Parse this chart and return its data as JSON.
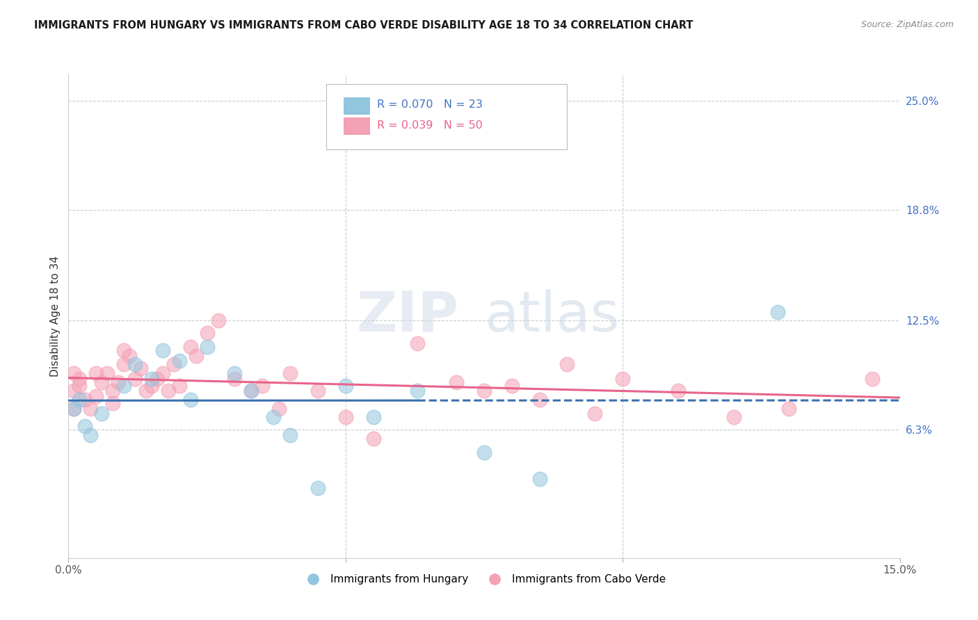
{
  "title": "IMMIGRANTS FROM HUNGARY VS IMMIGRANTS FROM CABO VERDE DISABILITY AGE 18 TO 34 CORRELATION CHART",
  "source": "Source: ZipAtlas.com",
  "ylabel_label": "Disability Age 18 to 34",
  "xlim": [
    0.0,
    0.15
  ],
  "ylim": [
    -0.01,
    0.265
  ],
  "yticks_right": [
    0.063,
    0.125,
    0.188,
    0.25
  ],
  "ytick_labels_right": [
    "6.3%",
    "12.5%",
    "18.8%",
    "25.0%"
  ],
  "hungary_color": "#92C5DE",
  "cabo_verde_color": "#F4A0B5",
  "hungary_R": 0.07,
  "hungary_N": 23,
  "cabo_verde_R": 0.039,
  "cabo_verde_N": 50,
  "hungary_line_color": "#3A6FB0",
  "cabo_verde_line_color": "#E8638A",
  "grid_color": "#CCCCCC",
  "background_color": "#FFFFFF",
  "hungary_x": [
    0.001,
    0.002,
    0.003,
    0.004,
    0.006,
    0.01,
    0.012,
    0.015,
    0.017,
    0.02,
    0.022,
    0.025,
    0.03,
    0.033,
    0.037,
    0.04,
    0.045,
    0.05,
    0.055,
    0.063,
    0.075,
    0.085,
    0.128
  ],
  "hungary_y": [
    0.075,
    0.08,
    0.065,
    0.06,
    0.072,
    0.088,
    0.1,
    0.092,
    0.108,
    0.102,
    0.08,
    0.11,
    0.095,
    0.085,
    0.07,
    0.06,
    0.03,
    0.088,
    0.07,
    0.085,
    0.05,
    0.035,
    0.13
  ],
  "cabo_verde_x": [
    0.001,
    0.001,
    0.001,
    0.002,
    0.002,
    0.003,
    0.004,
    0.005,
    0.005,
    0.006,
    0.007,
    0.008,
    0.008,
    0.009,
    0.01,
    0.01,
    0.011,
    0.012,
    0.013,
    0.014,
    0.015,
    0.016,
    0.017,
    0.018,
    0.019,
    0.02,
    0.022,
    0.023,
    0.025,
    0.027,
    0.03,
    0.033,
    0.035,
    0.038,
    0.04,
    0.045,
    0.05,
    0.055,
    0.063,
    0.07,
    0.075,
    0.08,
    0.085,
    0.09,
    0.095,
    0.1,
    0.11,
    0.12,
    0.13,
    0.145
  ],
  "cabo_verde_y": [
    0.075,
    0.085,
    0.095,
    0.088,
    0.092,
    0.08,
    0.075,
    0.095,
    0.082,
    0.09,
    0.095,
    0.078,
    0.085,
    0.09,
    0.1,
    0.108,
    0.105,
    0.092,
    0.098,
    0.085,
    0.088,
    0.092,
    0.095,
    0.085,
    0.1,
    0.088,
    0.11,
    0.105,
    0.118,
    0.125,
    0.092,
    0.085,
    0.088,
    0.075,
    0.095,
    0.085,
    0.07,
    0.058,
    0.112,
    0.09,
    0.085,
    0.088,
    0.08,
    0.1,
    0.072,
    0.092,
    0.085,
    0.07,
    0.075,
    0.092
  ]
}
